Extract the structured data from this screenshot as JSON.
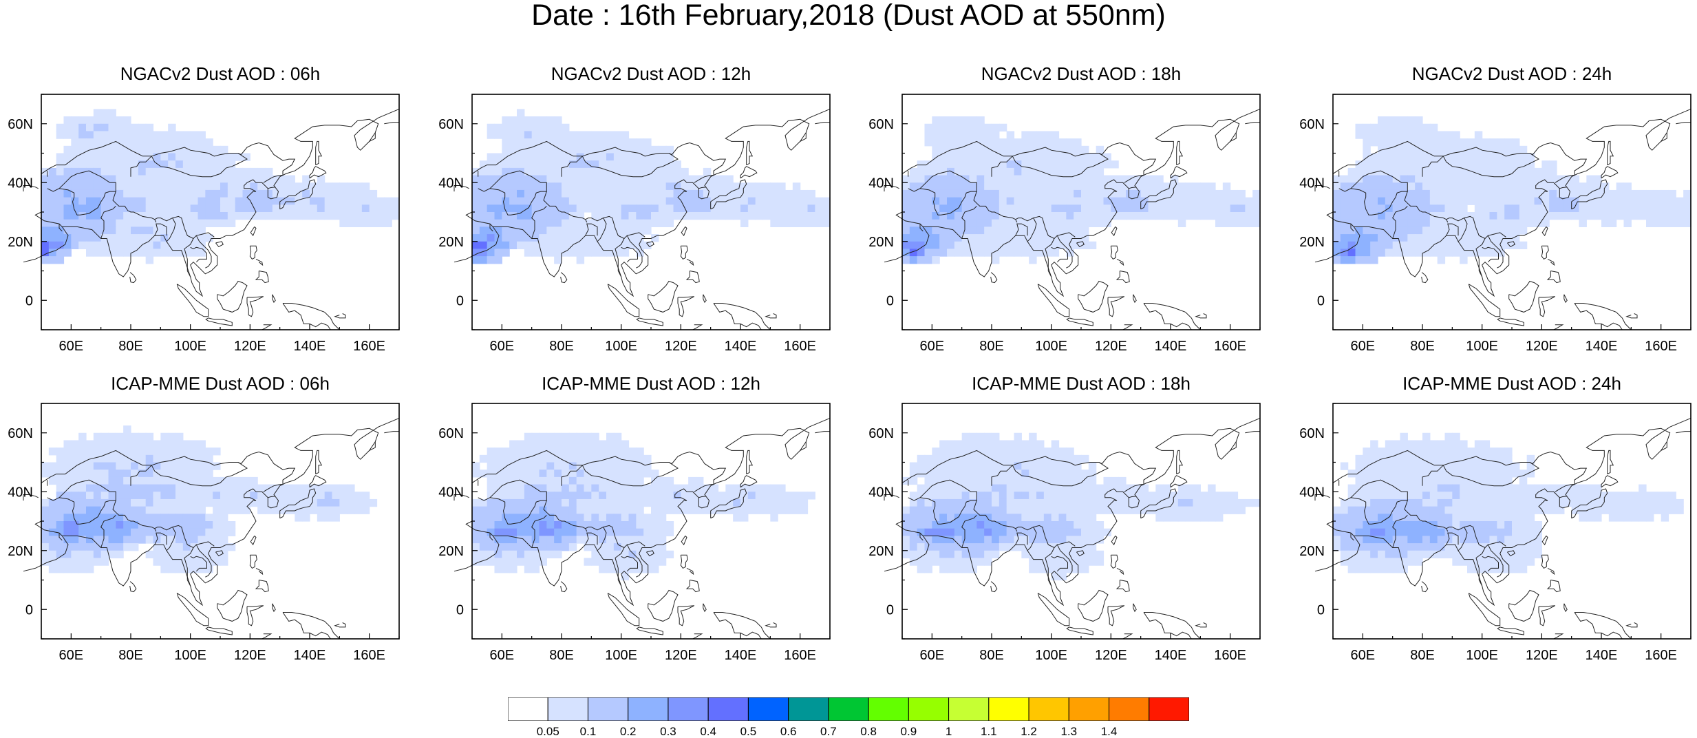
{
  "figure_title": "Date : 16th February,2018 (Dust AOD at 550nm)",
  "panels": [
    {
      "title": "NGACv2 Dust AOD : 06h",
      "model": "NGACv2",
      "hour": "06h"
    },
    {
      "title": "NGACv2 Dust AOD : 12h",
      "model": "NGACv2",
      "hour": "12h"
    },
    {
      "title": "NGACv2 Dust AOD : 18h",
      "model": "NGACv2",
      "hour": "18h"
    },
    {
      "title": "NGACv2 Dust AOD : 24h",
      "model": "NGACv2",
      "hour": "24h"
    },
    {
      "title": "ICAP-MME Dust AOD : 06h",
      "model": "ICAP-MME",
      "hour": "06h"
    },
    {
      "title": "ICAP-MME Dust AOD : 12h",
      "model": "ICAP-MME",
      "hour": "12h"
    },
    {
      "title": "ICAP-MME Dust AOD : 18h",
      "model": "ICAP-MME",
      "hour": "18h"
    },
    {
      "title": "ICAP-MME Dust AOD : 24h",
      "model": "ICAP-MME",
      "hour": "24h"
    }
  ],
  "map": {
    "lon_range": [
      50,
      170
    ],
    "lat_range": [
      -10,
      70
    ],
    "lon_ticks": [
      60,
      80,
      100,
      120,
      140,
      160
    ],
    "lon_tick_labels": [
      "60E",
      "80E",
      "100E",
      "120E",
      "140E",
      "160E"
    ],
    "lat_ticks": [
      0,
      20,
      40,
      60
    ],
    "lat_tick_labels": [
      "0",
      "20N",
      "40N",
      "60N"
    ]
  },
  "colorbar": {
    "labels": [
      "0.05",
      "0.1",
      "0.2",
      "0.3",
      "0.4",
      "0.5",
      "0.6",
      "0.7",
      "0.8",
      "0.9",
      "1",
      "1.1",
      "1.2",
      "1.3",
      "1.4"
    ],
    "colors": [
      "#ffffff",
      "#d6e2ff",
      "#b5c9ff",
      "#8eb2ff",
      "#7f96ff",
      "#6370ff",
      "#0063ff",
      "#009696",
      "#00c633",
      "#63ff00",
      "#96ff00",
      "#c6ff33",
      "#ffff00",
      "#ffc600",
      "#ffa000",
      "#ff7c00",
      "#ff1900"
    ]
  }
}
